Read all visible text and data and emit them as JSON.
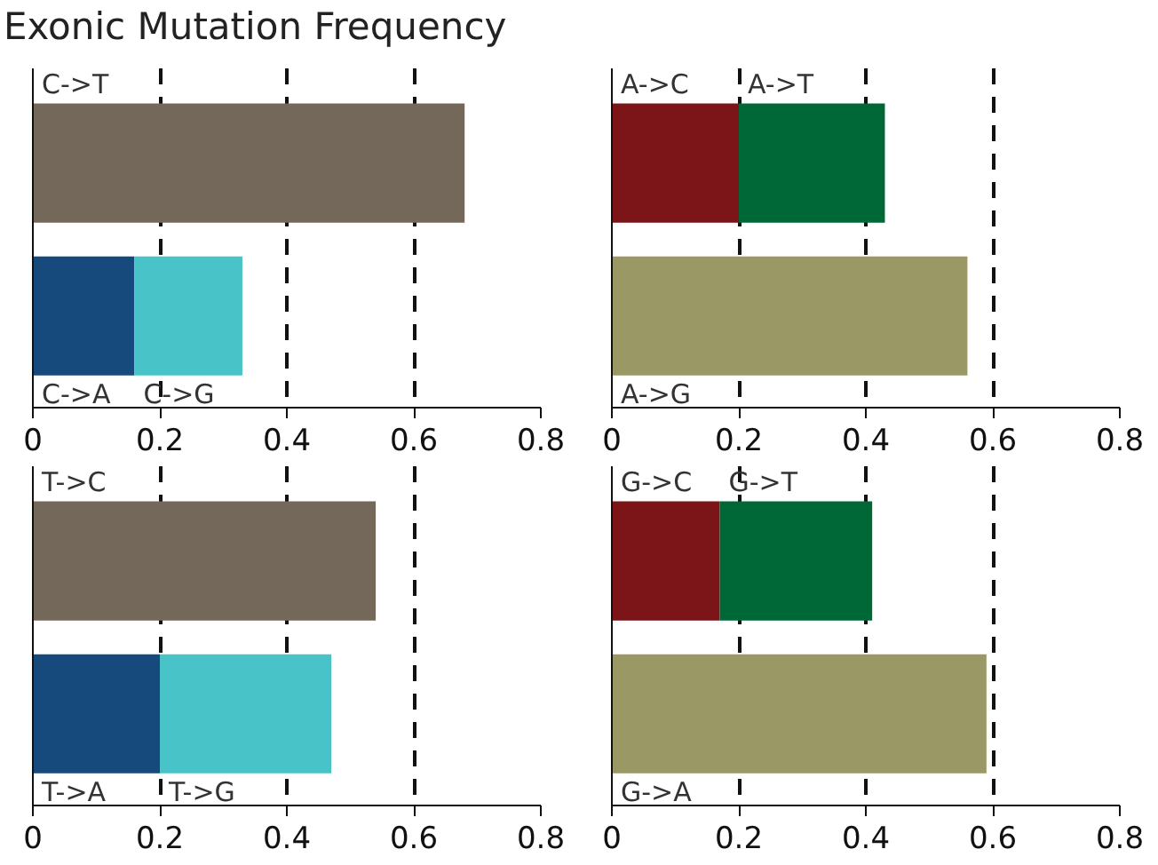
{
  "chart_data": [
    {
      "type": "bar",
      "title": "Exonic Mutation Frequency",
      "orientation": "horizontal",
      "stacked": true,
      "categories": [
        null,
        null
      ],
      "xlim": [
        0,
        0.8
      ],
      "xticks": [
        0,
        0.2,
        0.4,
        0.6,
        0.8
      ],
      "grid": "x",
      "tick_labels": "x",
      "series": [
        {
          "name": "C->T",
          "color": "#73685a",
          "values": [
            0.68,
            null
          ]
        },
        {
          "name": "C->A",
          "color": "#174a7c",
          "values": [
            null,
            0.16
          ]
        },
        {
          "name": "C->G",
          "color": "#48c4c8",
          "values": [
            null,
            0.17
          ]
        }
      ]
    },
    {
      "type": "bar",
      "orientation": "horizontal",
      "stacked": true,
      "categories": [
        null,
        null
      ],
      "xlim": [
        0,
        0.8
      ],
      "xticks": [
        0,
        0.2,
        0.4,
        0.6,
        0.8
      ],
      "grid": "x",
      "tick_labels": "x",
      "series": [
        {
          "name": "A->C",
          "color": "#7b1518",
          "values": [
            0.2,
            null
          ]
        },
        {
          "name": "A->T",
          "color": "#006837",
          "values": [
            0.23,
            null
          ]
        },
        {
          "name": "A->G",
          "color": "#9a9865",
          "values": [
            null,
            0.56
          ]
        }
      ]
    },
    {
      "type": "bar",
      "orientation": "horizontal",
      "stacked": true,
      "categories": [
        null,
        null
      ],
      "xlim": [
        0,
        0.8
      ],
      "xticks": [
        0,
        0.2,
        0.4,
        0.6,
        0.8
      ],
      "grid": "x",
      "tick_labels": "x",
      "series": [
        {
          "name": "T->C",
          "color": "#73685a",
          "values": [
            0.54,
            null
          ]
        },
        {
          "name": "T->A",
          "color": "#174a7c",
          "values": [
            null,
            0.2
          ]
        },
        {
          "name": "T->G",
          "color": "#48c4c8",
          "values": [
            null,
            0.27
          ]
        }
      ]
    },
    {
      "type": "bar",
      "orientation": "horizontal",
      "stacked": true,
      "categories": [
        null,
        null
      ],
      "xlim": [
        0,
        0.8
      ],
      "xticks": [
        0,
        0.2,
        0.4,
        0.6,
        0.8
      ],
      "grid": "x",
      "tick_labels": "x",
      "series": [
        {
          "name": "G->C",
          "color": "#7b1518",
          "values": [
            0.17,
            null
          ]
        },
        {
          "name": "G->T",
          "color": "#006837",
          "values": [
            0.24,
            null
          ]
        },
        {
          "name": "G->A",
          "color": "#9a9865",
          "values": [
            null,
            0.59
          ]
        }
      ]
    }
  ]
}
